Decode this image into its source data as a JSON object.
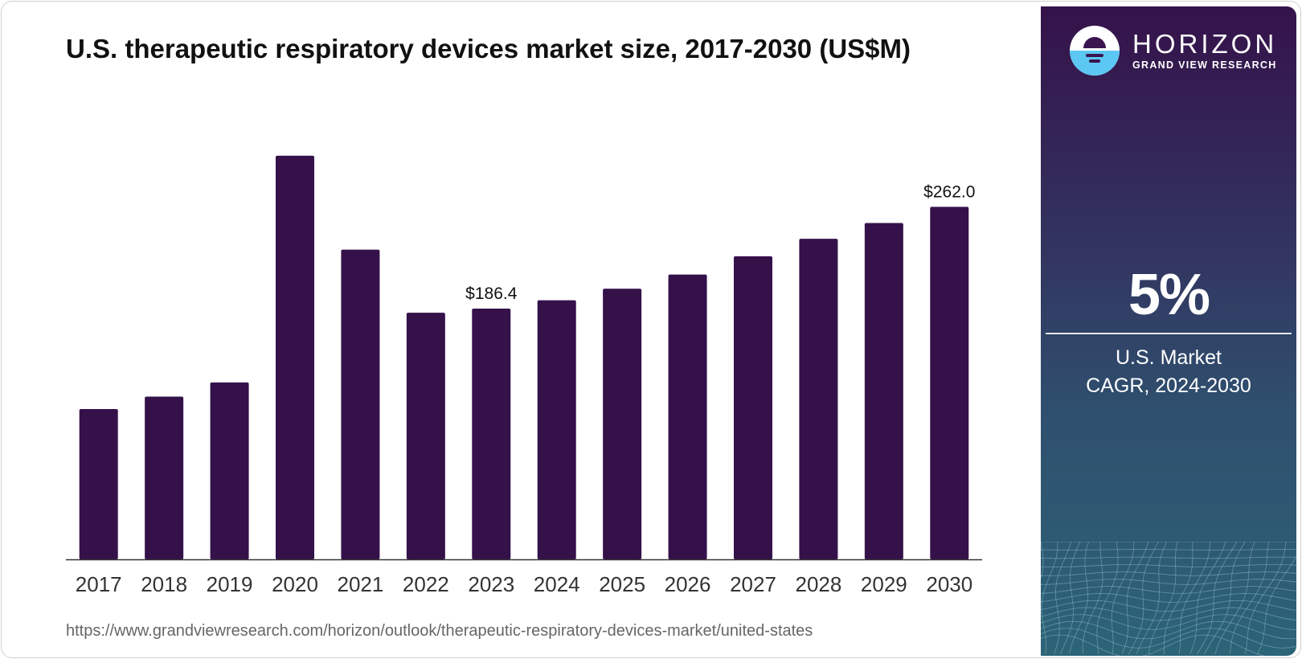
{
  "title": "U.S. therapeutic respiratory devices market size, 2017-2030 (US$M)",
  "source_url": "https://www.grandviewresearch.com/horizon/outlook/therapeutic-respiratory-devices-market/united-states",
  "sidebar": {
    "brand_name": "HORIZON",
    "brand_sub": "GRAND VIEW RESEARCH",
    "cagr_value": "5%",
    "cagr_label_line1": "U.S. Market",
    "cagr_label_line2": "CAGR, 2024-2030"
  },
  "colors": {
    "bar": "#35114a",
    "axis": "#333333",
    "label": "#333333"
  },
  "chart_data": {
    "type": "bar",
    "title": "U.S. therapeutic respiratory devices market size, 2017-2030 (US$M)",
    "xlabel": "",
    "ylabel": "",
    "categories": [
      "2017",
      "2018",
      "2019",
      "2020",
      "2021",
      "2022",
      "2023",
      "2024",
      "2025",
      "2026",
      "2027",
      "2028",
      "2029",
      "2030"
    ],
    "values": [
      111.7,
      121.0,
      131.5,
      300.0,
      230.2,
      183.3,
      186.4,
      192.6,
      201.2,
      211.7,
      225.3,
      238.3,
      250.0,
      262.0
    ],
    "data_labels": {
      "2023": "$186.4",
      "2030": "$262.0"
    },
    "ylim": [
      0,
      320
    ],
    "grid": false,
    "legend": "none"
  }
}
